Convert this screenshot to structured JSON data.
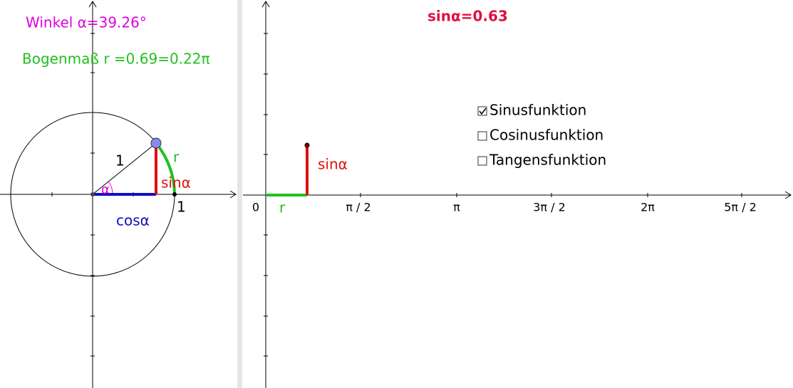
{
  "left_panel": {
    "angle_label": "Winkel α=39.26°",
    "radian_label": "Bogenmaß r =0.69=0.22π",
    "radius_label": "1",
    "arc_label": "r",
    "sin_label": "sinα",
    "alpha_label": "α",
    "cos_label": "cosα",
    "unit_label": "1"
  },
  "right_panel": {
    "sin_value_label": "sinα=0.63",
    "checkboxes": [
      {
        "label": "Sinusfunktion",
        "checked": true
      },
      {
        "label": "Cosinusfunktion",
        "checked": false
      },
      {
        "label": "Tangensfunktion",
        "checked": false
      }
    ],
    "x_axis_labels": [
      "0",
      "π / 2",
      "π",
      "3π / 2",
      "2π",
      "5π / 2"
    ],
    "r_label": "r",
    "sin_label": "sinα"
  }
}
